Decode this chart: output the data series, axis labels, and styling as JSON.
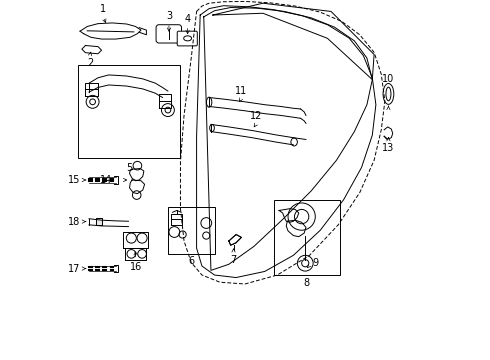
{
  "bg_color": "#ffffff",
  "line_color": "#000000",
  "figsize": [
    4.9,
    3.6
  ],
  "dpi": 100,
  "door_outer_dashed": {
    "x": [
      0.365,
      0.38,
      0.4,
      0.44,
      0.5,
      0.57,
      0.64,
      0.71,
      0.77,
      0.82,
      0.86,
      0.88,
      0.89,
      0.88,
      0.86,
      0.82,
      0.76,
      0.68,
      0.59,
      0.5,
      0.43,
      0.38,
      0.35,
      0.33,
      0.32,
      0.32,
      0.33,
      0.35,
      0.365
    ],
    "y": [
      0.97,
      0.985,
      0.993,
      0.997,
      0.998,
      0.994,
      0.985,
      0.968,
      0.942,
      0.905,
      0.856,
      0.795,
      0.72,
      0.64,
      0.555,
      0.465,
      0.375,
      0.29,
      0.235,
      0.21,
      0.215,
      0.235,
      0.27,
      0.33,
      0.42,
      0.55,
      0.68,
      0.84,
      0.97
    ]
  },
  "door_inner_solid1": {
    "x": [
      0.375,
      0.4,
      0.44,
      0.51,
      0.58,
      0.66,
      0.73,
      0.79,
      0.83,
      0.855,
      0.865,
      0.855,
      0.825,
      0.775,
      0.71,
      0.635,
      0.555,
      0.475,
      0.415,
      0.38,
      0.365,
      0.365,
      0.375
    ],
    "y": [
      0.96,
      0.978,
      0.986,
      0.983,
      0.975,
      0.958,
      0.933,
      0.896,
      0.847,
      0.785,
      0.71,
      0.625,
      0.535,
      0.445,
      0.36,
      0.29,
      0.245,
      0.228,
      0.235,
      0.26,
      0.31,
      0.62,
      0.96
    ]
  },
  "door_inner_solid2": {
    "x": [
      0.385,
      0.415,
      0.46,
      0.535,
      0.61,
      0.685,
      0.75,
      0.805,
      0.84,
      0.855,
      0.84,
      0.805,
      0.755,
      0.685,
      0.605,
      0.525,
      0.455,
      0.405,
      0.385
    ],
    "y": [
      0.955,
      0.972,
      0.981,
      0.979,
      0.97,
      0.952,
      0.926,
      0.888,
      0.84,
      0.78,
      0.71,
      0.635,
      0.555,
      0.47,
      0.39,
      0.315,
      0.265,
      0.248,
      0.955
    ]
  },
  "window_triangle": {
    "x": [
      0.41,
      0.55,
      0.74,
      0.86,
      0.855,
      0.73,
      0.55,
      0.41
    ],
    "y": [
      0.96,
      0.993,
      0.97,
      0.85,
      0.78,
      0.895,
      0.965,
      0.96
    ]
  },
  "rod11_upper": {
    "x": [
      0.4,
      0.445,
      0.5,
      0.555,
      0.6,
      0.635,
      0.655
    ],
    "y": [
      0.73,
      0.725,
      0.718,
      0.71,
      0.705,
      0.7,
      0.698
    ]
  },
  "rod11_lower": {
    "x": [
      0.4,
      0.445,
      0.5,
      0.555,
      0.6,
      0.635,
      0.655
    ],
    "y": [
      0.705,
      0.7,
      0.693,
      0.685,
      0.68,
      0.675,
      0.672
    ]
  },
  "rod11_tip_upper": {
    "x": [
      0.655,
      0.665,
      0.67
    ],
    "y": [
      0.698,
      0.69,
      0.68
    ]
  },
  "rod11_tip_lower": {
    "x": [
      0.655,
      0.665,
      0.67
    ],
    "y": [
      0.672,
      0.665,
      0.658
    ]
  },
  "rod12_upper": {
    "x": [
      0.405,
      0.455,
      0.52,
      0.585,
      0.635,
      0.67
    ],
    "y": [
      0.655,
      0.648,
      0.638,
      0.626,
      0.618,
      0.613
    ]
  },
  "rod12_lower": {
    "x": [
      0.405,
      0.455,
      0.52,
      0.585,
      0.635
    ],
    "y": [
      0.635,
      0.628,
      0.618,
      0.606,
      0.598
    ]
  },
  "rod12_ball": [
    0.408,
    0.645
  ],
  "rod12_ball2": [
    0.638,
    0.608
  ]
}
